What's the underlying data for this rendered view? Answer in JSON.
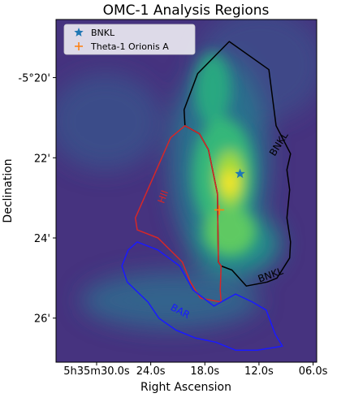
{
  "chart_data": {
    "type": "heatmap",
    "title": "OMC-1 Analysis Regions",
    "xlabel": "Right Ascension",
    "ylabel": "Declination",
    "x_ticks": [
      {
        "value": 30.0,
        "label": "5h35m30.0s"
      },
      {
        "value": 24.0,
        "label": "24.0s"
      },
      {
        "value": 18.0,
        "label": "18.0s"
      },
      {
        "value": 12.0,
        "label": "12.0s"
      },
      {
        "value": 6.0,
        "label": "06.0s"
      }
    ],
    "y_ticks": [
      {
        "value": 20,
        "label": "-5°20'"
      },
      {
        "value": 22,
        "label": "22'"
      },
      {
        "value": 24,
        "label": "24'"
      },
      {
        "value": 26,
        "label": "26'"
      }
    ],
    "xlim": [
      34.5,
      5.6
    ],
    "ylim": [
      18.55,
      27.1
    ],
    "grid": false,
    "colormap": "viridis",
    "legend": {
      "position": "top-left",
      "entries": [
        {
          "label": "BNKL",
          "marker": "star",
          "color": "#1f77b4"
        },
        {
          "label": "Theta-1 Orionis A",
          "marker": "plus",
          "color": "#ff7f0e"
        }
      ]
    },
    "points": [
      {
        "name": "BNKL",
        "ra_s": 14.1,
        "dec_min": 22.4,
        "marker": "star",
        "color": "#1f77b4"
      },
      {
        "name": "Theta-1 Orionis A",
        "ra_s": 16.4,
        "dec_min": 23.3,
        "marker": "plus",
        "color": "#ff7f0e"
      }
    ],
    "regions": [
      {
        "label": "BNKL",
        "color": "#000000",
        "label_positions": [
          {
            "ra_s": 9.5,
            "dec_min": 21.7,
            "rotate": -58
          },
          {
            "ra_s": 10.6,
            "dec_min": 25.0,
            "rotate": -20
          }
        ],
        "polygon": [
          [
            18.8,
            19.9
          ],
          [
            15.3,
            19.1
          ],
          [
            10.9,
            19.8
          ],
          [
            10.1,
            21.2
          ],
          [
            8.5,
            21.9
          ],
          [
            8.9,
            22.3
          ],
          [
            8.6,
            22.8
          ],
          [
            8.9,
            23.5
          ],
          [
            8.5,
            24.1
          ],
          [
            8.6,
            24.5
          ],
          [
            10.0,
            25.0
          ],
          [
            11.1,
            25.1
          ],
          [
            13.4,
            25.2
          ],
          [
            15.0,
            24.8
          ],
          [
            16.2,
            24.7
          ],
          [
            16.5,
            24.6
          ],
          [
            16.6,
            22.9
          ],
          [
            17.6,
            21.8
          ],
          [
            18.6,
            21.4
          ],
          [
            20.2,
            21.2
          ],
          [
            20.3,
            20.8
          ],
          [
            18.8,
            19.9
          ]
        ]
      },
      {
        "label": "HII",
        "color": "#d62728",
        "label_positions": [
          {
            "ra_s": 22.3,
            "dec_min": 23.0,
            "rotate": -70
          }
        ],
        "polygon": [
          [
            20.2,
            21.2
          ],
          [
            18.6,
            21.4
          ],
          [
            17.6,
            21.8
          ],
          [
            16.6,
            22.9
          ],
          [
            16.5,
            24.6
          ],
          [
            16.2,
            24.7
          ],
          [
            16.3,
            25.3
          ],
          [
            16.2,
            25.6
          ],
          [
            18.5,
            25.5
          ],
          [
            19.6,
            25.1
          ],
          [
            20.5,
            24.6
          ],
          [
            23.2,
            24.0
          ],
          [
            25.5,
            23.8
          ],
          [
            25.7,
            23.5
          ],
          [
            21.8,
            21.5
          ],
          [
            20.2,
            21.2
          ]
        ]
      },
      {
        "label": "BAR",
        "color": "#1a1aff",
        "label_positions": [
          {
            "ra_s": 20.9,
            "dec_min": 25.9,
            "rotate": 28
          }
        ],
        "polygon": [
          [
            26.5,
            24.3
          ],
          [
            27.2,
            24.7
          ],
          [
            26.6,
            25.1
          ],
          [
            24.3,
            25.6
          ],
          [
            23.1,
            26.0
          ],
          [
            21.2,
            26.3
          ],
          [
            19.0,
            26.5
          ],
          [
            16.8,
            26.6
          ],
          [
            14.6,
            26.8
          ],
          [
            12.2,
            26.8
          ],
          [
            9.4,
            26.7
          ],
          [
            10.2,
            26.4
          ],
          [
            11.2,
            25.8
          ],
          [
            12.7,
            25.6
          ],
          [
            14.6,
            25.4
          ],
          [
            17.0,
            25.7
          ],
          [
            19.3,
            25.3
          ],
          [
            20.8,
            24.7
          ],
          [
            23.2,
            24.3
          ],
          [
            25.5,
            24.1
          ],
          [
            26.5,
            24.3
          ]
        ]
      }
    ]
  }
}
